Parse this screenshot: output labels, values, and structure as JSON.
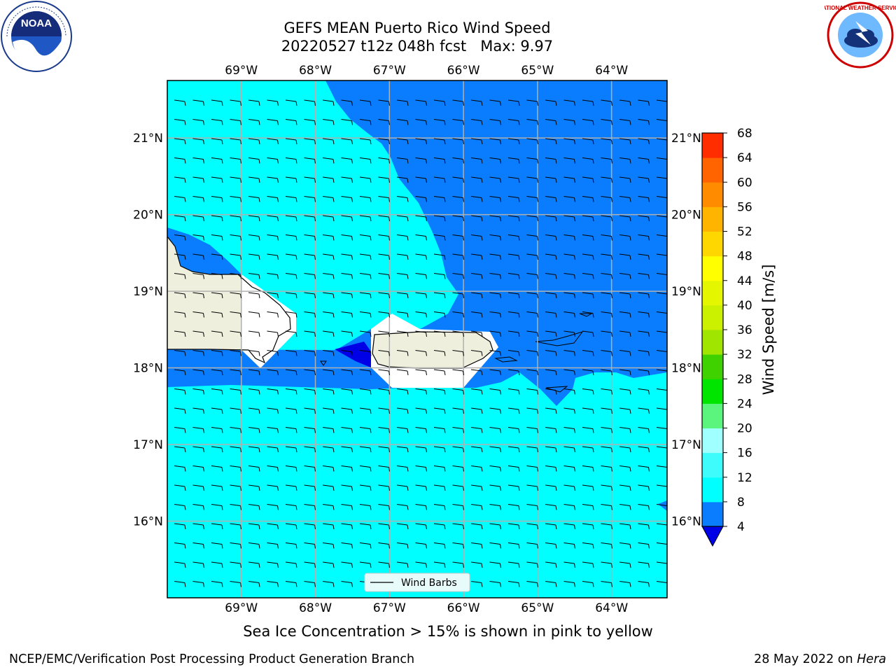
{
  "header": {
    "title": "GEFS MEAN Puerto Rico Wind Speed",
    "subtitle": "20220527 t12z 048h fcst   Max: 9.97"
  },
  "logos": {
    "left": {
      "icon": "noaa-logo",
      "text": "NOAA"
    },
    "right": {
      "icon": "national-weather-service-logo",
      "text": "NATIONAL WEATHER SERVICE"
    }
  },
  "map": {
    "lon_labels": [
      "69°W",
      "68°W",
      "67°W",
      "66°W",
      "65°W",
      "64°W"
    ],
    "lat_labels": [
      "21°N",
      "20°N",
      "19°N",
      "18°N",
      "17°N",
      "16°N"
    ],
    "lon_range": [
      -70.0,
      -63.25
    ],
    "lat_range": [
      15.0,
      21.75
    ],
    "legend_label": "Wind Barbs",
    "colors": {
      "land": "#efefdd",
      "cyan": "#00ffff",
      "blue": "#0a7dff",
      "dark_blue": "#0000e6",
      "grid": "#b0b0b0"
    }
  },
  "colorbar": {
    "label": "Wind Speed [m/s]",
    "ticks": [
      "4",
      "8",
      "12",
      "16",
      "20",
      "24",
      "28",
      "32",
      "36",
      "40",
      "44",
      "48",
      "52",
      "56",
      "60",
      "64",
      "68"
    ],
    "colors": [
      "#0a7dff",
      "#00ffff",
      "#3ffcfc",
      "#a0ffff",
      "#5bf47c",
      "#00e500",
      "#3fd100",
      "#9fe500",
      "#cbf000",
      "#e5f700",
      "#ffff00",
      "#ffd700",
      "#ffb400",
      "#ff8c00",
      "#ff6400",
      "#ff2d00"
    ],
    "extend_color": "#0000e6"
  },
  "footer": {
    "caption": "Sea Ice Concentration > 15% is shown in pink to yellow",
    "left": "NCEP/EMC/Verification Post Processing Product Generation Branch",
    "right_prefix": "28 May 2022 on ",
    "right_machine": "Hera"
  }
}
